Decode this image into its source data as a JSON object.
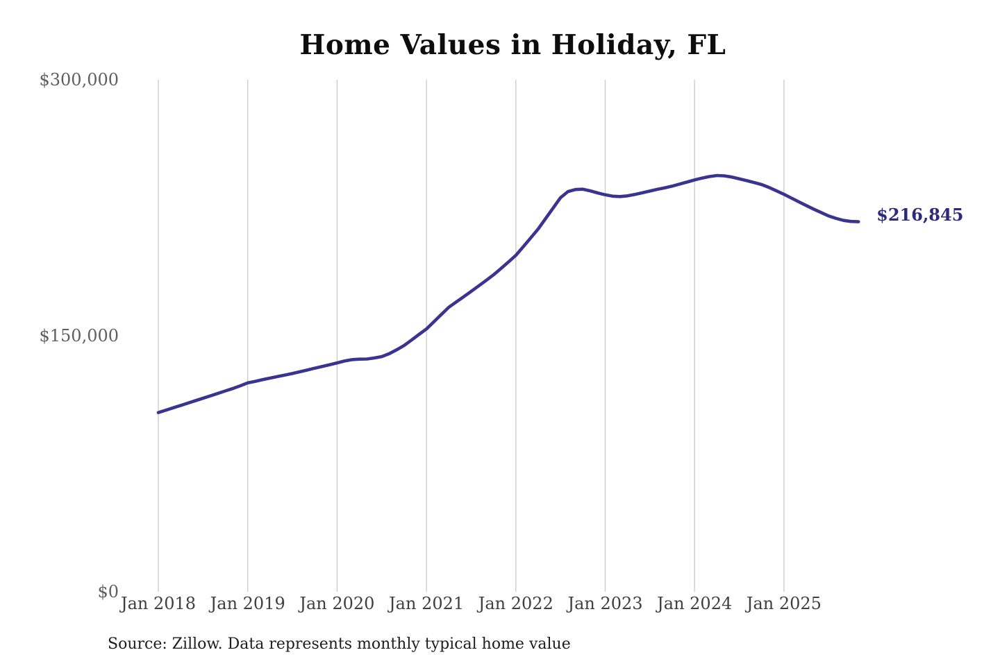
{
  "chart": {
    "title": "Home Values in Holiday, FL",
    "source": "Source: Zillow. Data represents monthly typical home value",
    "colors": {
      "line": "#3a3390",
      "annotation": "#2e2a7a",
      "grid": "#c9c9c9",
      "y_tick_text": "#5f5f5f",
      "x_tick_text": "#3f3f3f",
      "title_text": "#0d0d0d",
      "source_text": "#1d1d1d",
      "background": "#ffffff"
    }
  },
  "chart_data": {
    "type": "line",
    "title": "Home Values in Holiday, FL",
    "xlabel": "",
    "ylabel": "",
    "x_start": "Jan 2018",
    "x_frequency": "monthly",
    "x_tick_labels": [
      "Jan 2018",
      "Jan 2019",
      "Jan 2020",
      "Jan 2021",
      "Jan 2022",
      "Jan 2023",
      "Jan 2024",
      "Jan 2025"
    ],
    "y_ticks": [
      0,
      150000,
      300000
    ],
    "y_tick_labels": [
      "$0",
      "$150,000",
      "$300,000"
    ],
    "ylim": [
      0,
      300000
    ],
    "grid": "vertical-only",
    "legend": "none",
    "annotation": {
      "text": "$216,845",
      "value": 216845,
      "position": "line-end"
    },
    "series": [
      {
        "name": "Typical home value",
        "values": [
          105000,
          106400,
          107800,
          109200,
          110600,
          112000,
          113400,
          114800,
          116200,
          117700,
          119100,
          120700,
          122400,
          123300,
          124300,
          125200,
          126100,
          127000,
          127900,
          128900,
          129900,
          131000,
          132000,
          133000,
          134100,
          135200,
          136000,
          136300,
          136400,
          137000,
          137800,
          139500,
          141800,
          144300,
          147500,
          150800,
          154000,
          158200,
          162500,
          166700,
          169800,
          172900,
          176000,
          179200,
          182400,
          185700,
          189400,
          193200,
          197100,
          202200,
          207400,
          212600,
          218700,
          224800,
          230900,
          234500,
          235700,
          235900,
          234900,
          233700,
          232600,
          231800,
          231600,
          232000,
          232800,
          233800,
          234800,
          235800,
          236700,
          237700,
          238900,
          240100,
          241300,
          242400,
          243300,
          243900,
          243700,
          243000,
          242000,
          240900,
          239800,
          238600,
          236900,
          234900,
          232900,
          230700,
          228500,
          226300,
          224200,
          222200,
          220200,
          218800,
          217600,
          217000,
          216845
        ]
      }
    ]
  }
}
